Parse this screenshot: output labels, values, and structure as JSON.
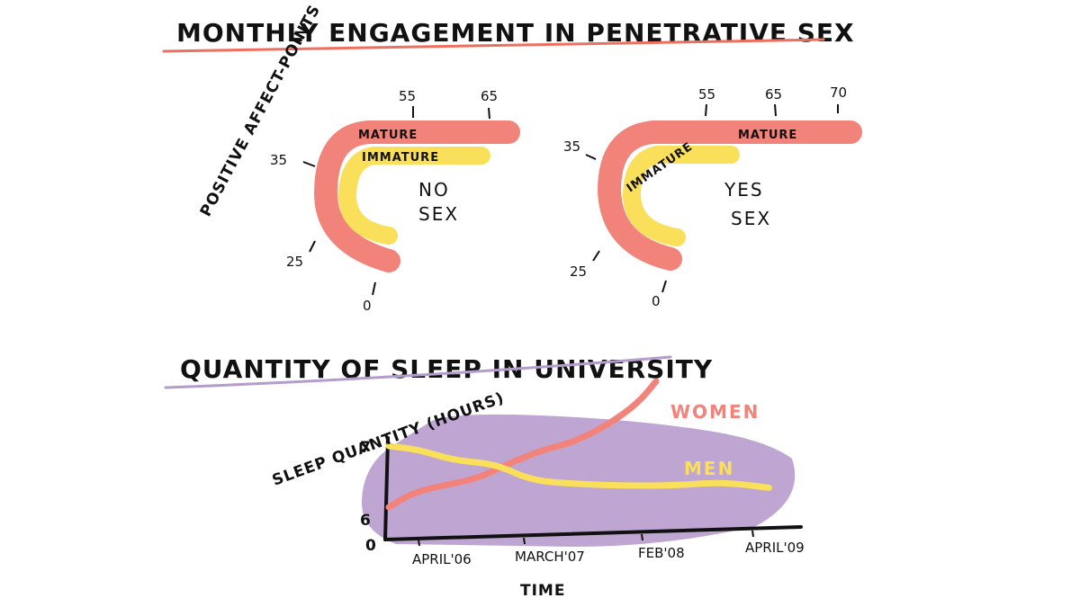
{
  "colors": {
    "mature": "#f2837a",
    "immature": "#f9df5a",
    "women": "#f2837a",
    "men": "#f9df5a",
    "blob": "#bfa6d2",
    "title1_underline": "#ef6f5f",
    "title2_underline": "#b49ccd",
    "ink": "#111111"
  },
  "chart_data": [
    {
      "type": "diagram",
      "title": "MONTHLY ENGAGEMENT IN PENETRATIVE SEX",
      "axis_label": "POSITIVE AFFECT-POINTS",
      "panels": [
        {
          "condition": [
            "NO",
            "SEX"
          ],
          "ticks": [
            "0",
            "25",
            "35",
            "55",
            "65"
          ],
          "bands": [
            {
              "name": "MATURE",
              "ends_at": 65
            },
            {
              "name": "IMMATURE",
              "ends_at": 55
            }
          ]
        },
        {
          "condition": [
            "YES",
            "SEX"
          ],
          "ticks": [
            "0",
            "25",
            "35",
            "55",
            "65",
            "70"
          ],
          "bands": [
            {
              "name": "MATURE",
              "ends_at": 70
            },
            {
              "name": "IMMATURE",
              "ends_at": 55
            }
          ]
        }
      ]
    },
    {
      "type": "line",
      "title": "QUANTITY OF SLEEP IN UNIVERSITY",
      "ylabel": "SLEEP QUANTITY (HOURS)",
      "xlabel": "TIME",
      "yticks": [
        "0",
        "6",
        "7"
      ],
      "xticks": [
        "APRIL'06",
        "MARCH'07",
        "FEB'08",
        "APRIL'09"
      ],
      "series": [
        {
          "name": "WOMEN",
          "x": [
            0,
            0.2,
            0.45,
            0.75,
            1.0,
            1.3,
            1.55,
            1.85,
            2.1,
            2.25
          ],
          "y": [
            6.15,
            6.35,
            6.45,
            6.55,
            6.75,
            6.95,
            7.05,
            7.3,
            7.6,
            7.9
          ]
        },
        {
          "name": "MEN",
          "x": [
            0,
            0.25,
            0.55,
            0.9,
            1.2,
            1.6,
            2.0,
            2.4,
            2.8,
            3.2
          ],
          "y": [
            7.0,
            6.95,
            6.8,
            6.75,
            6.52,
            6.47,
            6.45,
            6.45,
            6.5,
            6.42
          ]
        }
      ]
    }
  ]
}
